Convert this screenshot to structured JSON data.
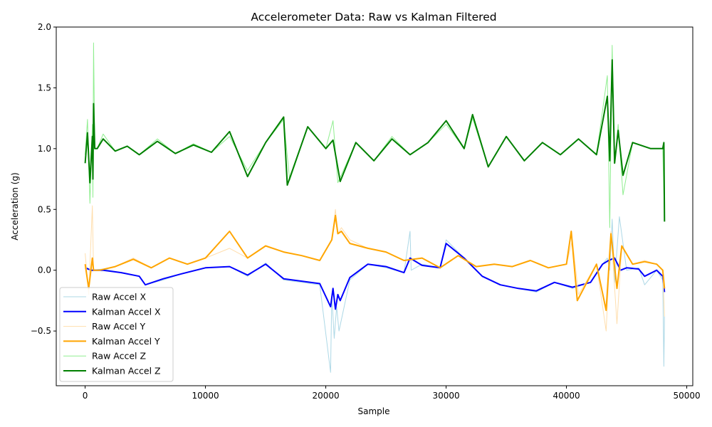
{
  "chart_data": {
    "type": "line",
    "title": "Accelerometer Data: Raw vs Kalman Filtered",
    "xlabel": "Sample",
    "ylabel": "Acceleration (g)",
    "xlim": [
      -2400,
      50500
    ],
    "ylim": [
      -0.95,
      2.0
    ],
    "xticks": [
      0,
      10000,
      20000,
      30000,
      40000,
      50000
    ],
    "xtick_labels": [
      "0",
      "10000",
      "20000",
      "30000",
      "40000",
      "50000"
    ],
    "yticks": [
      -0.5,
      0.0,
      0.5,
      1.0,
      1.5,
      2.0
    ],
    "ytick_labels": [
      "−0.5",
      "0.0",
      "0.5",
      "1.0",
      "1.5",
      "2.0"
    ],
    "grid": false,
    "legend_position": "lower-left",
    "series": [
      {
        "name": "Raw Accel X",
        "color": "#add8e6",
        "style": "thin",
        "x": [
          0,
          500,
          1500,
          3000,
          4500,
          5000,
          6500,
          8000,
          10000,
          12000,
          13500,
          15000,
          16500,
          18000,
          19500,
          20400,
          20500,
          20700,
          20900,
          21100,
          22000,
          23500,
          25000,
          26500,
          27000,
          27100,
          28000,
          29500,
          30000,
          31500,
          33000,
          34500,
          36000,
          37500,
          39000,
          40500,
          42000,
          43000,
          43400,
          43600,
          43800,
          44000,
          44400,
          45000,
          46000,
          46500,
          47500,
          48000,
          48100,
          48150
        ],
        "y": [
          0.03,
          0.0,
          0.01,
          -0.02,
          -0.05,
          -0.12,
          -0.08,
          -0.03,
          0.02,
          0.03,
          -0.05,
          0.06,
          -0.08,
          -0.1,
          -0.12,
          -0.84,
          -0.2,
          -0.56,
          -0.3,
          -0.5,
          -0.08,
          0.05,
          0.02,
          -0.02,
          0.32,
          0.0,
          0.05,
          0.02,
          0.25,
          0.1,
          -0.05,
          -0.12,
          -0.15,
          -0.18,
          -0.1,
          -0.15,
          -0.1,
          0.05,
          0.1,
          0.0,
          0.42,
          -0.1,
          0.44,
          0.0,
          0.02,
          -0.12,
          0.0,
          -0.08,
          -0.79,
          -0.38
        ]
      },
      {
        "name": "Kalman Accel X",
        "color": "#0000ff",
        "style": "thick",
        "x": [
          0,
          500,
          1500,
          3000,
          4500,
          5000,
          6500,
          8000,
          10000,
          12000,
          13500,
          15000,
          16500,
          18000,
          19500,
          20400,
          20600,
          20800,
          21000,
          21200,
          22000,
          23500,
          25000,
          26500,
          27000,
          28000,
          29500,
          30000,
          31500,
          33000,
          34500,
          36000,
          37500,
          39000,
          40500,
          42000,
          43000,
          43500,
          44000,
          44500,
          45000,
          46000,
          46500,
          47500,
          48000,
          48150
        ],
        "y": [
          0.02,
          0.0,
          0.0,
          -0.02,
          -0.05,
          -0.12,
          -0.07,
          -0.03,
          0.02,
          0.03,
          -0.04,
          0.05,
          -0.07,
          -0.09,
          -0.11,
          -0.3,
          -0.15,
          -0.32,
          -0.2,
          -0.25,
          -0.06,
          0.05,
          0.03,
          -0.02,
          0.1,
          0.04,
          0.02,
          0.22,
          0.1,
          -0.05,
          -0.12,
          -0.15,
          -0.17,
          -0.1,
          -0.14,
          -0.1,
          0.05,
          0.08,
          0.1,
          0.0,
          0.02,
          0.01,
          -0.05,
          0.0,
          -0.05,
          -0.18
        ]
      },
      {
        "name": "Raw Accel Y",
        "color": "#ffdead",
        "style": "thin",
        "x": [
          0,
          300,
          600,
          700,
          1200,
          2500,
          4000,
          5500,
          7000,
          8500,
          10000,
          12000,
          13500,
          15000,
          16500,
          18000,
          19500,
          20500,
          20800,
          21000,
          21300,
          22000,
          23500,
          25000,
          26500,
          28000,
          29500,
          31000,
          32500,
          34000,
          35500,
          37000,
          38500,
          40000,
          40500,
          41000,
          42500,
          43300,
          43700,
          44200,
          44600,
          45500,
          46500,
          47500,
          48000,
          48150
        ],
        "y": [
          0.14,
          -0.2,
          0.53,
          0.0,
          0.0,
          0.03,
          0.1,
          0.02,
          0.1,
          0.05,
          0.1,
          0.18,
          0.1,
          0.2,
          0.15,
          0.12,
          0.08,
          0.25,
          0.5,
          0.3,
          0.35,
          0.25,
          0.18,
          0.15,
          0.08,
          0.1,
          0.02,
          0.12,
          0.03,
          0.05,
          0.03,
          0.08,
          0.02,
          0.05,
          0.25,
          -0.2,
          0.05,
          -0.5,
          0.32,
          -0.44,
          0.2,
          0.05,
          0.08,
          0.05,
          0.0,
          -0.38
        ]
      },
      {
        "name": "Kalman Accel Y",
        "color": "#ffa500",
        "style": "thick",
        "x": [
          0,
          300,
          600,
          700,
          1200,
          2500,
          4000,
          5500,
          7000,
          8500,
          10000,
          12000,
          13500,
          15000,
          16500,
          18000,
          19500,
          20500,
          20800,
          21000,
          21300,
          22000,
          23500,
          25000,
          26500,
          28000,
          29500,
          31000,
          32500,
          34000,
          35500,
          37000,
          38500,
          40000,
          40400,
          40900,
          42500,
          43300,
          43700,
          44200,
          44600,
          45500,
          46500,
          47500,
          48000,
          48150
        ],
        "y": [
          0.05,
          -0.15,
          0.1,
          0.0,
          0.0,
          0.03,
          0.09,
          0.02,
          0.1,
          0.05,
          0.1,
          0.32,
          0.1,
          0.2,
          0.15,
          0.12,
          0.08,
          0.25,
          0.45,
          0.3,
          0.32,
          0.22,
          0.18,
          0.15,
          0.08,
          0.1,
          0.02,
          0.12,
          0.03,
          0.05,
          0.03,
          0.08,
          0.02,
          0.05,
          0.32,
          -0.25,
          0.05,
          -0.33,
          0.3,
          -0.15,
          0.2,
          0.05,
          0.07,
          0.05,
          0.0,
          -0.15
        ]
      },
      {
        "name": "Raw Accel Z",
        "color": "#90ee90",
        "style": "thin",
        "x": [
          0,
          200,
          400,
          600,
          650,
          700,
          800,
          1000,
          1500,
          2500,
          3500,
          4500,
          6000,
          7500,
          9000,
          10500,
          12000,
          13500,
          15000,
          16500,
          17000,
          18500,
          20000,
          20600,
          21000,
          22500,
          24000,
          25500,
          27000,
          28500,
          30000,
          31500,
          32200,
          33500,
          35000,
          36500,
          38000,
          39500,
          41000,
          42500,
          43400,
          43600,
          43800,
          44000,
          44300,
          44700,
          45500,
          47000,
          48000,
          48150
        ],
        "y": [
          0.95,
          1.24,
          0.55,
          1.2,
          0.6,
          1.87,
          1.0,
          1.0,
          1.12,
          0.98,
          1.02,
          0.95,
          1.08,
          0.96,
          1.04,
          0.97,
          1.1,
          0.82,
          1.05,
          1.24,
          0.74,
          1.18,
          1.0,
          1.23,
          0.72,
          1.05,
          0.9,
          1.1,
          0.95,
          1.05,
          1.2,
          1.0,
          1.25,
          0.85,
          1.1,
          0.9,
          1.05,
          0.95,
          1.08,
          0.95,
          1.6,
          0.35,
          1.85,
          0.88,
          1.2,
          0.62,
          1.05,
          1.0,
          1.0,
          0.42
        ]
      },
      {
        "name": "Kalman Accel Z",
        "color": "#008000",
        "style": "thick",
        "x": [
          0,
          200,
          400,
          600,
          650,
          700,
          800,
          1000,
          1500,
          2500,
          3500,
          4500,
          6000,
          7500,
          9000,
          10500,
          12000,
          13500,
          15000,
          16500,
          16800,
          18500,
          20000,
          20600,
          21200,
          22500,
          24000,
          25500,
          27000,
          28500,
          30000,
          31500,
          32200,
          33500,
          35000,
          36500,
          38000,
          39500,
          41000,
          42500,
          43400,
          43600,
          43800,
          44000,
          44300,
          44700,
          45500,
          47000,
          48000,
          48100,
          48150
        ],
        "y": [
          0.88,
          1.13,
          0.72,
          1.1,
          0.75,
          1.37,
          1.0,
          1.0,
          1.08,
          0.98,
          1.02,
          0.95,
          1.06,
          0.96,
          1.03,
          0.97,
          1.14,
          0.77,
          1.05,
          1.26,
          0.7,
          1.18,
          1.0,
          1.07,
          0.73,
          1.05,
          0.9,
          1.08,
          0.95,
          1.05,
          1.23,
          1.0,
          1.28,
          0.85,
          1.1,
          0.9,
          1.05,
          0.95,
          1.08,
          0.95,
          1.43,
          0.9,
          1.73,
          0.88,
          1.15,
          0.78,
          1.05,
          1.0,
          1.0,
          1.05,
          0.4
        ]
      }
    ]
  }
}
